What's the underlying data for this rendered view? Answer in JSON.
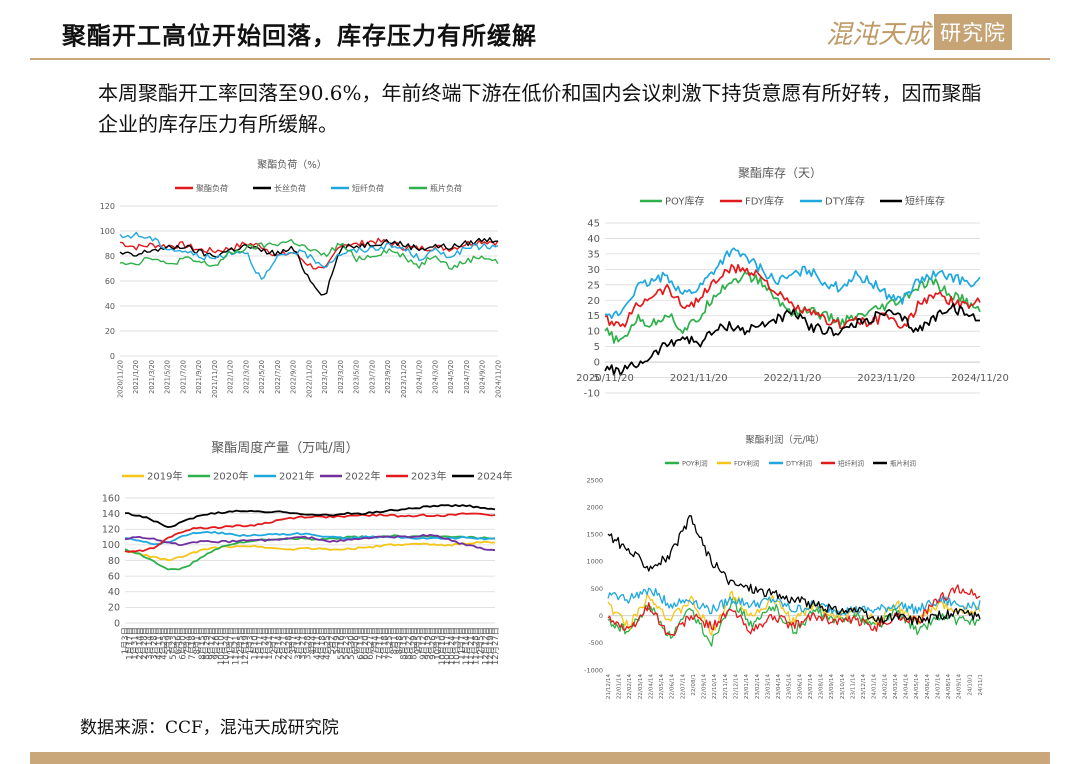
{
  "header": {
    "title": "聚酯开工高位开始回落，库存压力有所缓解",
    "logo_main": "混沌天成",
    "logo_box": "研究院"
  },
  "intro": "本周聚酯开工率回落至90.6%，年前终端下游在低价和国内会议刺激下持货意愿有所好转，因而聚酯企业的库存压力有所缓解。",
  "source": "数据来源：CCF，混沌天成研究院",
  "colors": {
    "accent": "#c9a77a",
    "red": "#e31a1c",
    "black": "#000000",
    "blue": "#1fa8e0",
    "green": "#2eb04a",
    "yellow": "#f5c518",
    "purple": "#7030a0"
  },
  "chart_data": [
    {
      "type": "line",
      "title": "聚酯负荷（%）",
      "ylim": [
        0,
        120
      ],
      "yticks": [
        "0",
        "20",
        "40",
        "60",
        "80",
        "100",
        "120"
      ],
      "grid": true,
      "legend_position": "top",
      "x": [
        "2020/11/20",
        "2021/1/20",
        "2021/3/20",
        "2021/5/20",
        "2021/7/20",
        "2021/9/20",
        "2021/11/20",
        "2022/1/20",
        "2022/3/20",
        "2022/5/20",
        "2022/7/20",
        "2022/9/20",
        "2022/11/20",
        "2023/1/20",
        "2023/3/20",
        "2023/5/20",
        "2023/7/20",
        "2023/9/20",
        "2023/11/20",
        "2024/1/20",
        "2024/3/20",
        "2024/5/20",
        "2024/7/20",
        "2024/9/20",
        "2024/11/20"
      ],
      "series": [
        {
          "name": "聚酯负荷",
          "color": "#e31a1c",
          "values": [
            91,
            87,
            89,
            88,
            89,
            85,
            84,
            86,
            90,
            88,
            80,
            83,
            73,
            68,
            90,
            89,
            92,
            91,
            87,
            86,
            87,
            86,
            90,
            92,
            91
          ]
        },
        {
          "name": "长丝负荷",
          "color": "#000000",
          "values": [
            82,
            80,
            85,
            86,
            88,
            83,
            80,
            85,
            88,
            84,
            82,
            86,
            62,
            48,
            86,
            88,
            90,
            92,
            89,
            86,
            88,
            87,
            90,
            93,
            93
          ]
        },
        {
          "name": "短纤负荷",
          "color": "#1fa8e0",
          "values": [
            95,
            97,
            94,
            86,
            84,
            80,
            78,
            83,
            84,
            60,
            78,
            84,
            80,
            72,
            82,
            84,
            86,
            88,
            86,
            78,
            84,
            80,
            86,
            88,
            87
          ]
        },
        {
          "name": "瓶片负荷",
          "color": "#2eb04a",
          "values": [
            76,
            74,
            80,
            72,
            78,
            75,
            72,
            82,
            86,
            88,
            90,
            92,
            85,
            80,
            90,
            78,
            80,
            85,
            80,
            72,
            82,
            70,
            76,
            80,
            75
          ]
        }
      ]
    },
    {
      "type": "line",
      "title": "聚酯库存（天）",
      "ylim": [
        -10,
        45
      ],
      "yticks": [
        "-10",
        "-5",
        "0",
        "5",
        "10",
        "15",
        "20",
        "25",
        "30",
        "35",
        "40",
        "45"
      ],
      "xticks": [
        "2020/11/20",
        "2021/11/20",
        "2022/11/20",
        "2023/11/20",
        "2024/11/20"
      ],
      "grid": true,
      "legend_position": "top",
      "x": [
        "2020/11",
        "2021/1",
        "2021/3",
        "2021/5",
        "2021/7",
        "2021/9",
        "2021/11",
        "2022/1",
        "2022/3",
        "2022/5",
        "2022/7",
        "2022/9",
        "2022/11",
        "2023/1",
        "2023/3",
        "2023/5",
        "2023/7",
        "2023/9",
        "2023/11",
        "2024/1",
        "2024/3",
        "2024/5",
        "2024/7",
        "2024/9",
        "2024/11"
      ],
      "series": [
        {
          "name": "POY库存",
          "color": "#2eb04a",
          "values": [
            10,
            6,
            14,
            12,
            16,
            10,
            14,
            22,
            26,
            28,
            26,
            20,
            16,
            17,
            15,
            13,
            14,
            16,
            18,
            20,
            24,
            26,
            22,
            20,
            16
          ]
        },
        {
          "name": "FDY库存",
          "color": "#e31a1c",
          "values": [
            14,
            11,
            18,
            22,
            24,
            18,
            20,
            26,
            30,
            30,
            28,
            22,
            18,
            16,
            14,
            12,
            14,
            12,
            16,
            10,
            18,
            22,
            20,
            18,
            20
          ]
        },
        {
          "name": "DTY库存",
          "color": "#1fa8e0",
          "values": [
            14,
            16,
            24,
            26,
            28,
            22,
            24,
            30,
            36,
            34,
            30,
            26,
            28,
            30,
            26,
            24,
            28,
            26,
            22,
            20,
            26,
            28,
            28,
            26,
            26
          ]
        },
        {
          "name": "短纤库存",
          "color": "#000000",
          "values": [
            -2,
            -3,
            -1,
            2,
            6,
            8,
            6,
            10,
            12,
            10,
            12,
            14,
            16,
            12,
            10,
            10,
            12,
            14,
            16,
            14,
            10,
            14,
            18,
            16,
            13
          ]
        }
      ]
    },
    {
      "type": "line",
      "title": "聚酯周度产量（万吨/周）",
      "ylim": [
        0,
        160
      ],
      "yticks": [
        "0",
        "20",
        "40",
        "60",
        "80",
        "100",
        "120",
        "140",
        "160"
      ],
      "grid": true,
      "legend_position": "top",
      "categories": [
        "1月3日",
        "1月17日",
        "1月31日",
        "2月14日",
        "2月28日",
        "3月14日",
        "3月28日",
        "4月11日",
        "4月25日",
        "5月9日",
        "5月23日",
        "6月6日",
        "6月20日",
        "7月4日",
        "7月18日",
        "8月1日",
        "8月15日",
        "8月29日",
        "9月12日",
        "9月26日",
        "10月10日",
        "10月24日",
        "11月7日",
        "11月21日",
        "12月5日",
        "12月19日"
      ],
      "axis_labels": [
        "1月3日",
        "1月17日",
        "1月31日",
        "2月14日",
        "2月28日",
        "3月14日",
        "3月28日",
        "4月11日",
        "4月25日",
        "5月9日",
        "5月23日",
        "6月6日",
        "6月20日",
        "7月4日",
        "7月18日",
        "8月1日",
        "8月15日",
        "8月29日",
        "9月12日",
        "9月26日",
        "10月10日",
        "10月24日",
        "11月7日",
        "11月21日",
        "12月5日",
        "12月19日",
        "1月3日",
        "1月10日",
        "1月17日",
        "1月24日",
        "1月31日",
        "2月7日",
        "2月14日",
        "2月21日",
        "2月28日",
        "3月7日",
        "3月14日",
        "3月21日",
        "3月28日",
        "4月4日",
        "4月11日",
        "4月18日",
        "4月25日",
        "5月2日",
        "5月9日",
        "5月16日",
        "5月23日",
        "5月30日",
        "6月6日",
        "6月13日",
        "6月20日",
        "6月27日",
        "7月4日",
        "7月11日",
        "7月18日",
        "7月25日",
        "8月1日",
        "8月8日",
        "8月15日",
        "8月22日",
        "8月29日",
        "9月5日",
        "9月12日",
        "9月19日",
        "9月26日",
        "10月3日",
        "10月10日",
        "10月17日",
        "10月24日",
        "10月31日",
        "11月7日",
        "11月14日",
        "11月21日",
        "11月28日",
        "12月5日",
        "12月12日",
        "12月19日",
        "12月27日"
      ],
      "series": [
        {
          "name": "2019年",
          "color": "#f5c518",
          "values": [
            92,
            88,
            84,
            80,
            86,
            92,
            96,
            98,
            99,
            98,
            96,
            94,
            96,
            95,
            94,
            95,
            96,
            98,
            100,
            100,
            101,
            100,
            100,
            102,
            103,
            104
          ]
        },
        {
          "name": "2020年",
          "color": "#2eb04a",
          "values": [
            94,
            88,
            78,
            68,
            70,
            82,
            94,
            100,
            104,
            106,
            106,
            108,
            108,
            106,
            108,
            110,
            110,
            110,
            112,
            110,
            110,
            111,
            110,
            110,
            109,
            108
          ]
        },
        {
          "name": "2021年",
          "color": "#1fa8e0",
          "values": [
            110,
            106,
            100,
            104,
            112,
            116,
            116,
            114,
            112,
            112,
            114,
            114,
            114,
            112,
            110,
            108,
            110,
            110,
            110,
            110,
            108,
            108,
            108,
            110,
            108,
            108
          ]
        },
        {
          "name": "2022年",
          "color": "#7030a0",
          "values": [
            108,
            110,
            108,
            102,
            100,
            104,
            104,
            104,
            106,
            106,
            106,
            108,
            110,
            108,
            104,
            106,
            108,
            110,
            110,
            110,
            112,
            112,
            106,
            100,
            96,
            92
          ]
        },
        {
          "name": "2023年",
          "color": "#e31a1c",
          "values": [
            92,
            92,
            96,
            110,
            118,
            122,
            122,
            124,
            124,
            126,
            130,
            134,
            136,
            136,
            136,
            136,
            138,
            138,
            138,
            136,
            138,
            138,
            138,
            140,
            140,
            138
          ]
        },
        {
          "name": "2024年",
          "color": "#000000",
          "values": [
            140,
            138,
            130,
            122,
            130,
            138,
            140,
            142,
            144,
            142,
            142,
            142,
            140,
            138,
            138,
            140,
            140,
            142,
            144,
            146,
            148,
            150,
            150,
            150,
            148,
            146
          ]
        }
      ]
    },
    {
      "type": "line",
      "title": "聚酯利润（元/吨）",
      "ylim": [
        -1000,
        2500
      ],
      "yticks": [
        "-1000",
        "-500",
        "0",
        "500",
        "1000",
        "1500",
        "2000",
        "2500"
      ],
      "grid": false,
      "legend_position": "top",
      "x": [
        "21/12/14",
        "22/01",
        "22/03",
        "22/05",
        "22/07",
        "22/09",
        "22/11",
        "23/01",
        "23/03",
        "23/05",
        "23/07",
        "23/09",
        "23/11",
        "24/01",
        "24/03",
        "24/05",
        "24/07",
        "24/09",
        "24/11"
      ],
      "x_labels": [
        "21/12/14",
        "22/01/14",
        "22/02/14",
        "22/03/14",
        "22/04/14",
        "22/05/14",
        "22/06/14",
        "22/07/14",
        "22/08/1",
        "22/09/14",
        "22/10/14",
        "22/11/14",
        "22/12/14",
        "23/01/14",
        "23/02/14",
        "23/03/14",
        "23/04/14",
        "23/05/14",
        "23/06/14",
        "23/07/14",
        "23/08/14",
        "23/09/14",
        "23/10/14",
        "23/11/14",
        "23/12/14",
        "24/01/14",
        "24/02/14",
        "24/03/14",
        "24/04/14",
        "24/05/14",
        "24/06/14",
        "24/07/14",
        "24/08/14",
        "24/09/14",
        "24/10/1",
        "24/11/1"
      ],
      "series": [
        {
          "name": "POY利润",
          "color": "#2eb04a",
          "values": [
            -100,
            -300,
            200,
            -400,
            100,
            -500,
            300,
            -200,
            200,
            -300,
            100,
            -100,
            0,
            -200,
            100,
            -300,
            0,
            -100,
            -100
          ]
        },
        {
          "name": "FDY利润",
          "color": "#f5c518",
          "values": [
            200,
            -200,
            400,
            -100,
            300,
            -300,
            400,
            0,
            300,
            -100,
            200,
            0,
            100,
            -100,
            200,
            -100,
            200,
            100,
            100
          ]
        },
        {
          "name": "DTY利润",
          "color": "#1fa8e0",
          "values": [
            400,
            300,
            500,
            200,
            300,
            100,
            300,
            200,
            300,
            100,
            200,
            100,
            100,
            100,
            200,
            100,
            300,
            200,
            200
          ]
        },
        {
          "name": "短纤利润",
          "color": "#e31a1c",
          "values": [
            0,
            -300,
            200,
            -400,
            0,
            -200,
            100,
            -300,
            0,
            -200,
            0,
            -100,
            -100,
            -200,
            0,
            -100,
            300,
            500,
            350
          ]
        },
        {
          "name": "瓶片利润",
          "color": "#000000",
          "values": [
            1500,
            1200,
            900,
            1100,
            1800,
            1000,
            600,
            500,
            400,
            300,
            200,
            100,
            100,
            -100,
            0,
            -100,
            0,
            50,
            0
          ]
        }
      ]
    }
  ]
}
